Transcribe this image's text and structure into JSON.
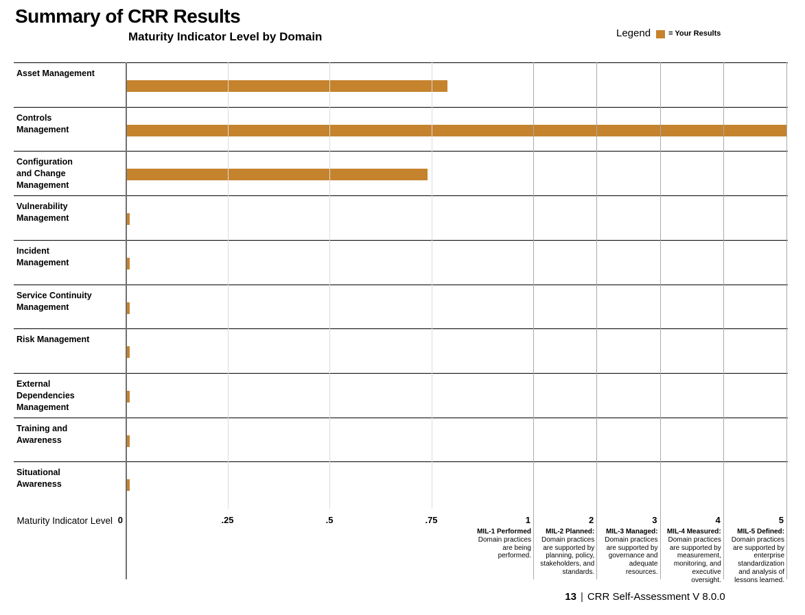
{
  "page": {
    "title": "Summary of CRR Results",
    "footer": {
      "page_number": "13",
      "separator": "|",
      "text": "CRR Self-Assessment V 8.0.0"
    }
  },
  "legend": {
    "label": "Legend",
    "entry": "= Your Results",
    "swatch_color": "#C5832E"
  },
  "chart_data": {
    "type": "bar",
    "orientation": "horizontal",
    "title": "Maturity Indicator Level by Domain",
    "xlabel": "Maturity Indicator Level",
    "series_name": "Your Results",
    "bar_color": "#C5832E",
    "categories": [
      "Asset Management",
      "Controls\nManagement",
      "Configuration\nand Change\nManagement",
      "Vulnerability\nManagement",
      "Incident\nManagement",
      "Service Continuity\nManagement",
      "Risk Management",
      "External\nDependencies\nManagement",
      "Training and\nAwareness",
      "Situational\nAwareness"
    ],
    "values": [
      0.79,
      5,
      0.74,
      0.01,
      0.01,
      0.01,
      0.01,
      0.01,
      0.01,
      0.01
    ],
    "axis": {
      "ticks": [
        "0",
        ".25",
        ".5",
        ".75",
        "1",
        "2",
        "3",
        "4",
        "5"
      ],
      "tick_values": [
        0,
        0.25,
        0.5,
        0.75,
        1,
        2,
        3,
        4,
        5
      ],
      "xlim": [
        0,
        5
      ],
      "grid": true,
      "scale_note": "segment 0-1 expanded, segments 1-5 compressed"
    },
    "mil_levels": [
      {
        "heading": "MIL-1 Performed",
        "body": "Domain practices\nare being\nperformed."
      },
      {
        "heading": "MIL-2 Planned:",
        "body": "Domain practices\nare supported by\nplanning, policy,\nstakeholders, and\nstandards."
      },
      {
        "heading": "MIL-3 Managed:",
        "body": "Domain practices\nare supported by\ngovernance and\nadequate\nresources."
      },
      {
        "heading": "MIL-4 Measured:",
        "body": "Domain practices\nare supported by\nmeasurement,\nmonitoring, and\nexecutive\noversight."
      },
      {
        "heading": "MIL-5 Defined:",
        "body": "Domain practices\nare supported by\nenterprise\nstandardization\nand analysis of\nlessons learned."
      }
    ]
  }
}
